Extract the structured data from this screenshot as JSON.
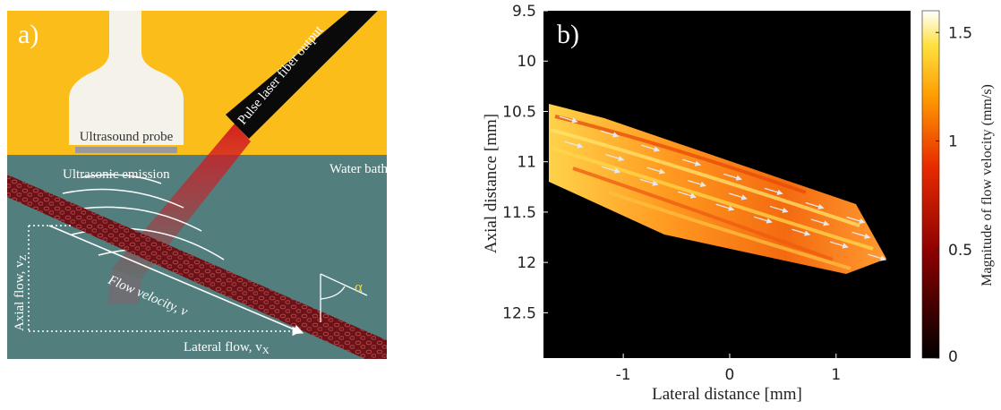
{
  "panel_a": {
    "label": "a)",
    "probe_label": "Ultrasound probe",
    "laser_label": "Pulse laser fiber output",
    "water_label": "Water bath",
    "emission_label": "Ultrasonic emission",
    "flow_label": "Flow velocity, v",
    "axial_label": "Axial flow, v",
    "axial_sub": "Z",
    "lateral_label": "Lateral flow, v",
    "lateral_sub": "X",
    "angle_label": "α",
    "colors": {
      "top_bg": "#fbbd1a",
      "water_bg": "#527f7e",
      "laser": "#d01a22",
      "vessel": "#6b1216"
    }
  },
  "panel_b": {
    "label": "b)",
    "colorbar_label": "Magnitude of flow velocity (mm/s)",
    "colorbar_ticks": [
      "0",
      "0.5",
      "1",
      "1.5"
    ]
  },
  "chart_data": {
    "type": "heatmap",
    "xlabel": "Lateral distance [mm]",
    "ylabel": "Axial distance [mm]",
    "x_ticks": [
      "-1",
      "0",
      "1"
    ],
    "y_ticks": [
      "9.5",
      "10",
      "10.5",
      "11",
      "11.5",
      "12",
      "12.5"
    ],
    "xlim": [
      -1.75,
      1.7
    ],
    "ylim": [
      9.5,
      12.95
    ],
    "y_reversed": true,
    "colorbar_range": [
      0,
      1.6
    ],
    "colormap": "hot",
    "region_polygon": [
      [
        -1.75,
        10.35
      ],
      [
        -1.2,
        10.6
      ],
      [
        1.2,
        11.45
      ],
      [
        1.4,
        11.85
      ],
      [
        0.8,
        11.95
      ],
      [
        -1.0,
        11.3
      ],
      [
        -1.75,
        11.15
      ]
    ],
    "vector_direction": "down-right, parallel to vessel"
  }
}
